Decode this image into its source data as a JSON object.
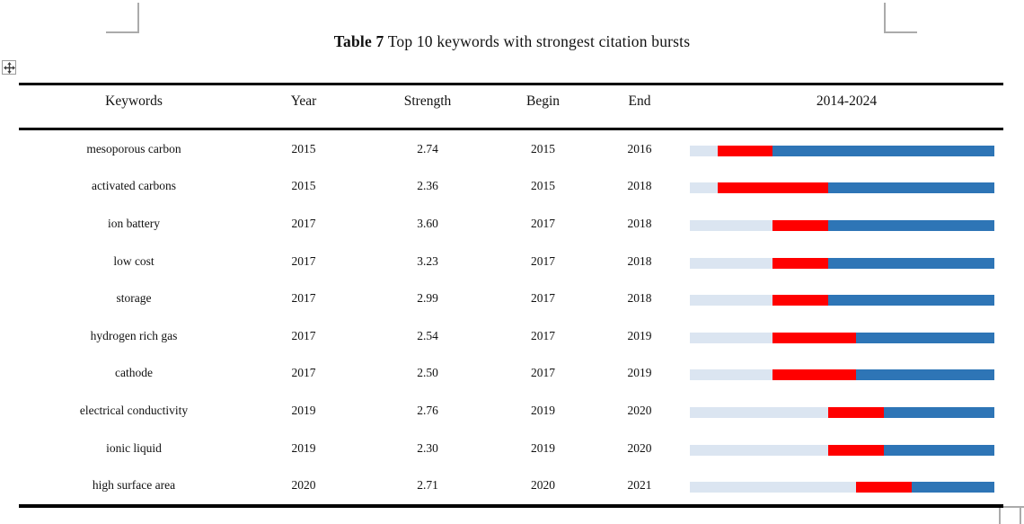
{
  "title": {
    "prefix": "Table 7",
    "text": " Top 10 keywords with strongest citation bursts"
  },
  "icons": {
    "move_handle": "four-way-move-arrow"
  },
  "table": {
    "headers": {
      "keyword": "Keywords",
      "year": "Year",
      "strength": "Strength",
      "begin": "Begin",
      "end": "End",
      "period": "2014-2024"
    },
    "period": {
      "start": 2014,
      "end": 2024
    },
    "colors": {
      "pre": "#dbe5f1",
      "burst": "#ff0000",
      "post": "#2e75b6"
    },
    "rows": [
      {
        "keyword": "mesoporous carbon",
        "year": "2015",
        "strength": "2.74",
        "begin": "2015",
        "end": "2016"
      },
      {
        "keyword": "activated carbons",
        "year": "2015",
        "strength": "2.36",
        "begin": "2015",
        "end": "2018"
      },
      {
        "keyword": "ion battery",
        "year": "2017",
        "strength": "3.60",
        "begin": "2017",
        "end": "2018"
      },
      {
        "keyword": "low cost",
        "year": "2017",
        "strength": "3.23",
        "begin": "2017",
        "end": "2018"
      },
      {
        "keyword": "storage",
        "year": "2017",
        "strength": "2.99",
        "begin": "2017",
        "end": "2018"
      },
      {
        "keyword": "hydrogen rich gas",
        "year": "2017",
        "strength": "2.54",
        "begin": "2017",
        "end": "2019"
      },
      {
        "keyword": "cathode",
        "year": "2017",
        "strength": "2.50",
        "begin": "2017",
        "end": "2019"
      },
      {
        "keyword": "electrical conductivity",
        "year": "2019",
        "strength": "2.76",
        "begin": "2019",
        "end": "2020"
      },
      {
        "keyword": "ionic liquid",
        "year": "2019",
        "strength": "2.30",
        "begin": "2019",
        "end": "2020"
      },
      {
        "keyword": "high surface area",
        "year": "2020",
        "strength": "2.71",
        "begin": "2020",
        "end": "2021"
      }
    ]
  }
}
